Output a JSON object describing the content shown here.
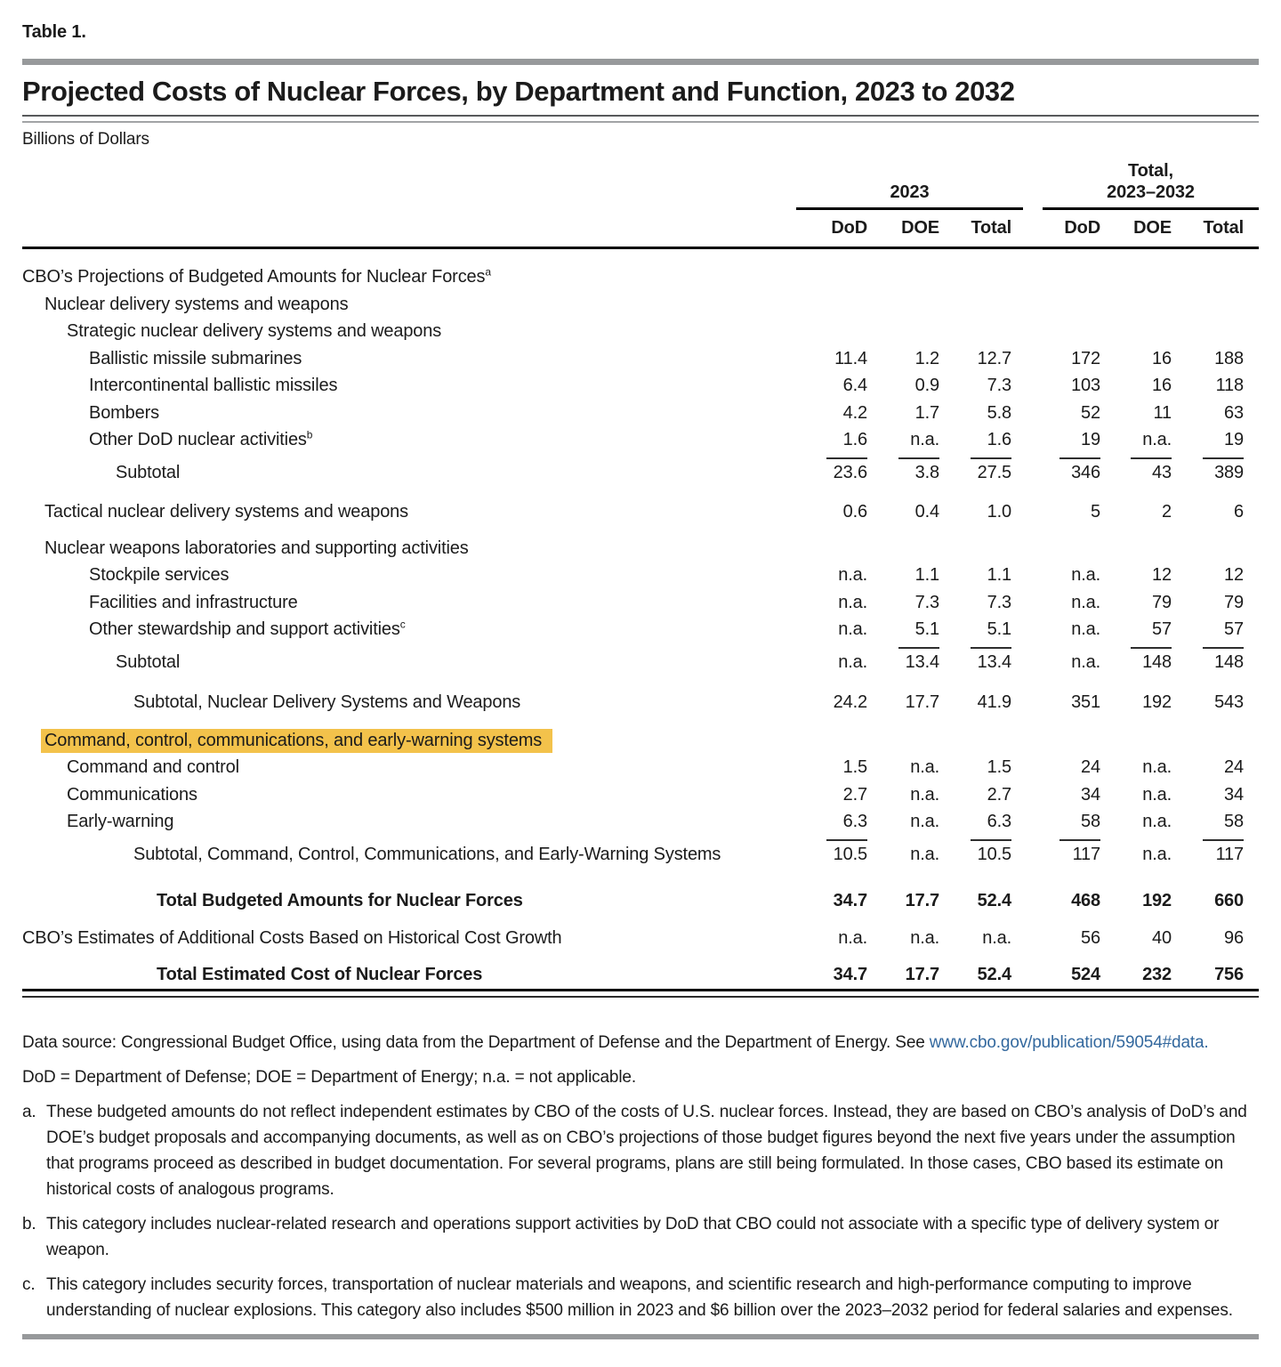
{
  "page": {
    "table_label": "Table 1.",
    "title": "Projected Costs of Nuclear Forces, by Department and Function, 2023 to 2032",
    "units": "Billions of Dollars"
  },
  "colors": {
    "highlight": "#f3c24b",
    "link_blue": "#33689e",
    "rule_gray": "#97999b",
    "text": "#1b1b1b"
  },
  "table": {
    "groups": [
      {
        "label_lines": [
          "2023"
        ],
        "cols": [
          "DoD",
          "DOE",
          "Total"
        ]
      },
      {
        "label_lines": [
          "Total,",
          "2023–2032"
        ],
        "cols": [
          "DoD",
          "DOE",
          "Total"
        ]
      }
    ],
    "rows": [
      {
        "label": "CBO’s Projections of Budgeted Amounts for Nuclear Forces",
        "sup": "a",
        "indent": 0
      },
      {
        "label": "Nuclear delivery systems and weapons",
        "indent": 1
      },
      {
        "label": "Strategic nuclear delivery systems and weapons",
        "indent": 2
      },
      {
        "label": "Ballistic missile submarines",
        "indent": 3,
        "values": [
          "11.4",
          "1.2",
          "12.7",
          "172",
          "16",
          "188"
        ]
      },
      {
        "label": "Intercontinental ballistic missiles",
        "indent": 3,
        "values": [
          "6.4",
          "0.9",
          "7.3",
          "103",
          "16",
          "118"
        ]
      },
      {
        "label": "Bombers",
        "indent": 3,
        "values": [
          "4.2",
          "1.7",
          "5.8",
          "52",
          "11",
          "63"
        ]
      },
      {
        "label": "Other DoD nuclear activities",
        "sup": "b",
        "indent": 3,
        "values": [
          "1.6",
          "n.a.",
          "1.6",
          "19",
          "n.a.",
          "19"
        ],
        "rules": [
          true,
          true,
          true,
          true,
          true,
          true
        ]
      },
      {
        "label": "Subtotal",
        "indent": 4,
        "values": [
          "23.6",
          "3.8",
          "27.5",
          "346",
          "43",
          "389"
        ]
      },
      {
        "label": "Tactical nuclear delivery systems and weapons",
        "indent": 1,
        "space": 14,
        "values": [
          "0.6",
          "0.4",
          "1.0",
          "5",
          "2",
          "6"
        ]
      },
      {
        "label": "Nuclear weapons laboratories and supporting activities",
        "indent": 1,
        "space": 10
      },
      {
        "label": "Stockpile services",
        "indent": 3,
        "values": [
          "n.a.",
          "1.1",
          "1.1",
          "n.a.",
          "12",
          "12"
        ]
      },
      {
        "label": "Facilities and infrastructure",
        "indent": 3,
        "values": [
          "n.a.",
          "7.3",
          "7.3",
          "n.a.",
          "79",
          "79"
        ]
      },
      {
        "label": "Other stewardship and support activities",
        "sup": "c",
        "indent": 3,
        "values": [
          "n.a.",
          "5.1",
          "5.1",
          "n.a.",
          "57",
          "57"
        ],
        "rules": [
          false,
          true,
          true,
          false,
          true,
          true
        ]
      },
      {
        "label": "Subtotal",
        "indent": 4,
        "values": [
          "n.a.",
          "13.4",
          "13.4",
          "n.a.",
          "148",
          "148"
        ]
      },
      {
        "label": "Subtotal, Nuclear Delivery Systems and Weapons",
        "indent": 5,
        "space": 15,
        "values": [
          "24.2",
          "17.7",
          "41.9",
          "351",
          "192",
          "543"
        ]
      },
      {
        "label": "Command, control, communications, and early-warning systems",
        "indent": 1,
        "highlight": true,
        "space": 12
      },
      {
        "label": "Command and control",
        "indent": 2,
        "values": [
          "1.5",
          "n.a.",
          "1.5",
          "24",
          "n.a.",
          "24"
        ]
      },
      {
        "label": "Communications",
        "indent": 2,
        "values": [
          "2.7",
          "n.a.",
          "2.7",
          "34",
          "n.a.",
          "34"
        ]
      },
      {
        "label": "Early-warning",
        "indent": 2,
        "values": [
          "6.3",
          "n.a.",
          "6.3",
          "58",
          "n.a.",
          "58"
        ],
        "rules": [
          true,
          false,
          true,
          true,
          false,
          true
        ]
      },
      {
        "label": "Subtotal, Command, Control, Communications, and Early-Warning Systems",
        "indent": 5,
        "values": [
          "10.5",
          "n.a.",
          "10.5",
          "117",
          "n.a.",
          "117"
        ]
      },
      {
        "label": "Total Budgeted Amounts for Nuclear Forces",
        "indent": 6,
        "bold": true,
        "space": 22,
        "values": [
          "34.7",
          "17.7",
          "52.4",
          "468",
          "192",
          "660"
        ]
      },
      {
        "label": "CBO’s Estimates of Additional Costs Based on Historical Cost Growth",
        "indent": 0,
        "space": 11,
        "values": [
          "n.a.",
          "n.a.",
          "n.a.",
          "56",
          "40",
          "96"
        ]
      },
      {
        "label": "Total Estimated Cost of Nuclear Forces",
        "indent": 6,
        "bold": true,
        "space": 11,
        "values": [
          "34.7",
          "17.7",
          "52.4",
          "524",
          "232",
          "756"
        ]
      }
    ]
  },
  "notes": {
    "source_prefix": "Data source: Congressional Budget Office, using data from the Department of Defense and the Department of Energy. See ",
    "source_link": "www.cbo.gov/publication/59054#data.",
    "abbreviations": "DoD = Department of Defense; DOE = Department of Energy; n.a. = not applicable.",
    "footnotes": [
      {
        "marker": "a.",
        "text": "These budgeted amounts do not reflect independent estimates by CBO of the costs of U.S. nuclear forces. Instead, they are based on CBO’s analysis of DoD’s and DOE’s budget proposals and accompanying documents, as well as on CBO’s projections of those budget figures beyond the next five years under the assumption that programs proceed as described in budget documentation. For several programs, plans are still being formulated. In those cases, CBO based its estimate on historical costs of analogous programs."
      },
      {
        "marker": "b.",
        "text": "This category includes nuclear-related research and operations support activities by DoD that CBO could not associate with a specific type of delivery system or weapon."
      },
      {
        "marker": "c.",
        "text": "This category includes security forces, transportation of nuclear materials and weapons, and scientific research and high-performance computing to improve understanding of nuclear explosions. This category also includes $500 million in 2023 and $6 billion over the 2023–2032 period for federal salaries and expenses."
      }
    ]
  }
}
